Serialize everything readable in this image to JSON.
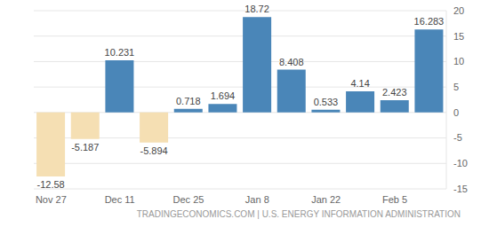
{
  "chart_data": {
    "type": "bar",
    "categories": [
      "Nov 27",
      null,
      "Dec 11",
      null,
      "Dec 25",
      null,
      "Jan 8",
      null,
      "Jan 22",
      null,
      "Feb 5",
      null
    ],
    "values": [
      -12.58,
      -5.187,
      10.231,
      -5.894,
      0.718,
      1.694,
      18.72,
      8.408,
      0.533,
      4.14,
      2.423,
      16.283
    ],
    "colors": [
      "#f5dfb3",
      "#f5dfb3",
      "#4a86b8",
      "#f5dfb3",
      "#4a86b8",
      "#4a86b8",
      "#4a86b8",
      "#4a86b8",
      "#4a86b8",
      "#4a86b8",
      "#4a86b8",
      "#4a86b8"
    ],
    "ylim": [
      -15,
      20
    ],
    "yticks": [
      -15,
      -10,
      -5,
      0,
      5,
      10,
      15,
      20
    ],
    "grid": true,
    "data_labels": true,
    "annotations": [
      "TRADINGECONOMICS.COM | U.S. ENERGY INFORMATION ADMINISTRATION"
    ]
  }
}
